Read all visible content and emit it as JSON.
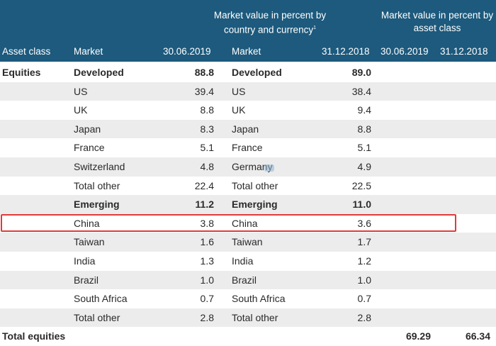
{
  "header": {
    "group_country": "Market value in percent by country and currency",
    "group_country_footnote": "1",
    "group_asset": "Market value in percent by asset class",
    "col_asset_class": "Asset class",
    "col_market_1": "Market",
    "col_date_1": "30.06.2019",
    "col_market_2": "Market",
    "col_date_2": "31.12.2018",
    "col_asset_date_1": "30.06.2019",
    "col_asset_date_2": "31.12.2018"
  },
  "rows": [
    {
      "asset": "Equities",
      "market1": "Developed",
      "value1": "88.8",
      "market2": "Developed",
      "value2": "89.0",
      "bold": true
    },
    {
      "asset": "",
      "market1": "US",
      "value1": "39.4",
      "market2": "US",
      "value2": "38.4"
    },
    {
      "asset": "",
      "market1": "UK",
      "value1": "8.8",
      "market2": "UK",
      "value2": "9.4"
    },
    {
      "asset": "",
      "market1": "Japan",
      "value1": "8.3",
      "market2": "Japan",
      "value2": "8.8"
    },
    {
      "asset": "",
      "market1": "France",
      "value1": "5.1",
      "market2": "France",
      "value2": "5.1"
    },
    {
      "asset": "",
      "market1": "Switzerland",
      "value1": "4.8",
      "market2": "Germany",
      "value2": "4.9"
    },
    {
      "asset": "",
      "market1": "Total other",
      "value1": "22.4",
      "market2": "Total other",
      "value2": "22.5"
    },
    {
      "asset": "",
      "market1": "Emerging",
      "value1": "11.2",
      "market2": "Emerging",
      "value2": "11.0",
      "bold": true
    },
    {
      "asset": "",
      "market1": "China",
      "value1": "3.8",
      "market2": "China",
      "value2": "3.6",
      "highlighted": true
    },
    {
      "asset": "",
      "market1": "Taiwan",
      "value1": "1.6",
      "market2": "Taiwan",
      "value2": "1.7"
    },
    {
      "asset": "",
      "market1": "India",
      "value1": "1.3",
      "market2": "India",
      "value2": "1.2"
    },
    {
      "asset": "",
      "market1": "Brazil",
      "value1": "1.0",
      "market2": "Brazil",
      "value2": "1.0"
    },
    {
      "asset": "",
      "market1": "South Africa",
      "value1": "0.7",
      "market2": "South Africa",
      "value2": "0.7"
    },
    {
      "asset": "",
      "market1": "Total other",
      "value1": "2.8",
      "market2": "Total other",
      "value2": "2.8"
    }
  ],
  "total": {
    "label": "Total equities",
    "asset1": "69.29",
    "asset2": "66.34"
  },
  "colors": {
    "header_bg": "#1d5a7d",
    "row_shade": "#ececec",
    "highlight_border": "#e03a3a"
  }
}
